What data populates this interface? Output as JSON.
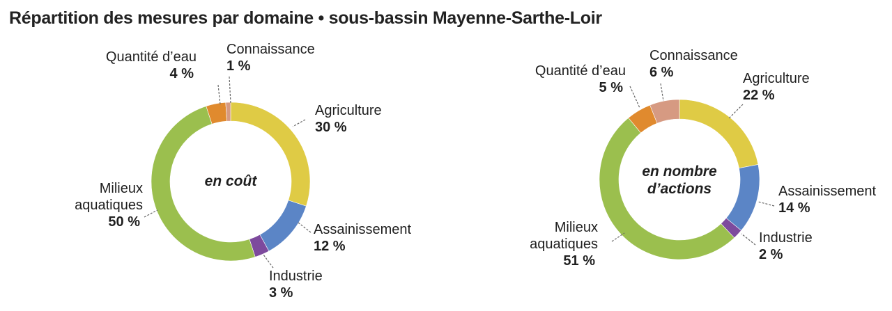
{
  "title": "Répartition des mesures par domaine • sous-bassin Mayenne-Sarthe-Loir",
  "chart_data": [
    {
      "type": "pie",
      "center_label": [
        "en coût"
      ],
      "categories": [
        "Agriculture",
        "Assainissement",
        "Industrie",
        "Milieux aquatiques",
        "Quantité d’eau",
        "Connaissance"
      ],
      "values": [
        30,
        12,
        3,
        50,
        4,
        1
      ],
      "value_labels": [
        "30 %",
        "12 %",
        "3 %",
        "50 %",
        "4 %",
        "1 %"
      ],
      "label_lines": [
        [
          "Agriculture"
        ],
        [
          "Assainissement"
        ],
        [
          "Industrie"
        ],
        [
          "Milieux",
          "aquatiques"
        ],
        [
          "Quantité d’eau"
        ],
        [
          "Connaissance"
        ]
      ]
    },
    {
      "type": "pie",
      "center_label": [
        "en nombre",
        "d’actions"
      ],
      "categories": [
        "Agriculture",
        "Assainissement",
        "Industrie",
        "Milieux aquatiques",
        "Quantité d’eau",
        "Connaissance"
      ],
      "values": [
        22,
        14,
        2,
        51,
        5,
        6
      ],
      "value_labels": [
        "22 %",
        "14 %",
        "2 %",
        "51 %",
        "5 %",
        "6 %"
      ],
      "label_lines": [
        [
          "Agriculture"
        ],
        [
          "Assainissement"
        ],
        [
          "Industrie"
        ],
        [
          "Milieux",
          "aquatiques"
        ],
        [
          "Quantité d’eau"
        ],
        [
          "Connaissance"
        ]
      ]
    }
  ],
  "colors": {
    "Agriculture": "#DFCB45",
    "Assainissement": "#5B85C6",
    "Industrie": "#7D4A9D",
    "Milieux aquatiques": "#9BBF4E",
    "Quantité d’eau": "#E08A2E",
    "Connaissance": "#D69A82",
    "leader": "#666666"
  }
}
